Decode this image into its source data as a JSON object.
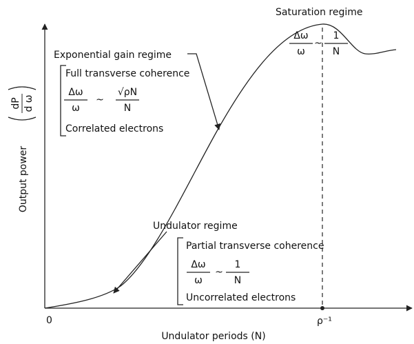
{
  "axes": {
    "y_label": "Output power",
    "y_label_fraction": {
      "numerator": "dP",
      "denominator": "d ω"
    },
    "x_label": "Undulator periods (N)",
    "x_origin": "0",
    "x_marker": "ρ⁻¹"
  },
  "regimes": [
    {
      "title": "Saturation regime",
      "formula": {
        "lhs": {
          "numerator": "Δω",
          "denominator": "ω"
        },
        "relation": "~",
        "rhs": {
          "numerator": "1",
          "denominator": "N"
        }
      }
    },
    {
      "title": "Exponential gain regime",
      "property": "Full transverse coherence",
      "formula": {
        "lhs": {
          "numerator": "Δω",
          "denominator": "ω"
        },
        "relation": "~",
        "rhs": {
          "numerator": "√ρN",
          "denominator": "N"
        }
      },
      "electrons": "Correlated electrons"
    },
    {
      "title": "Undulator regime",
      "property": "Partial transverse coherence",
      "formula": {
        "lhs": {
          "numerator": "Δω",
          "denominator": "ω"
        },
        "relation": "~",
        "rhs": {
          "numerator": "1",
          "denominator": "N"
        }
      },
      "electrons": "Uncorrelated electrons"
    }
  ]
}
